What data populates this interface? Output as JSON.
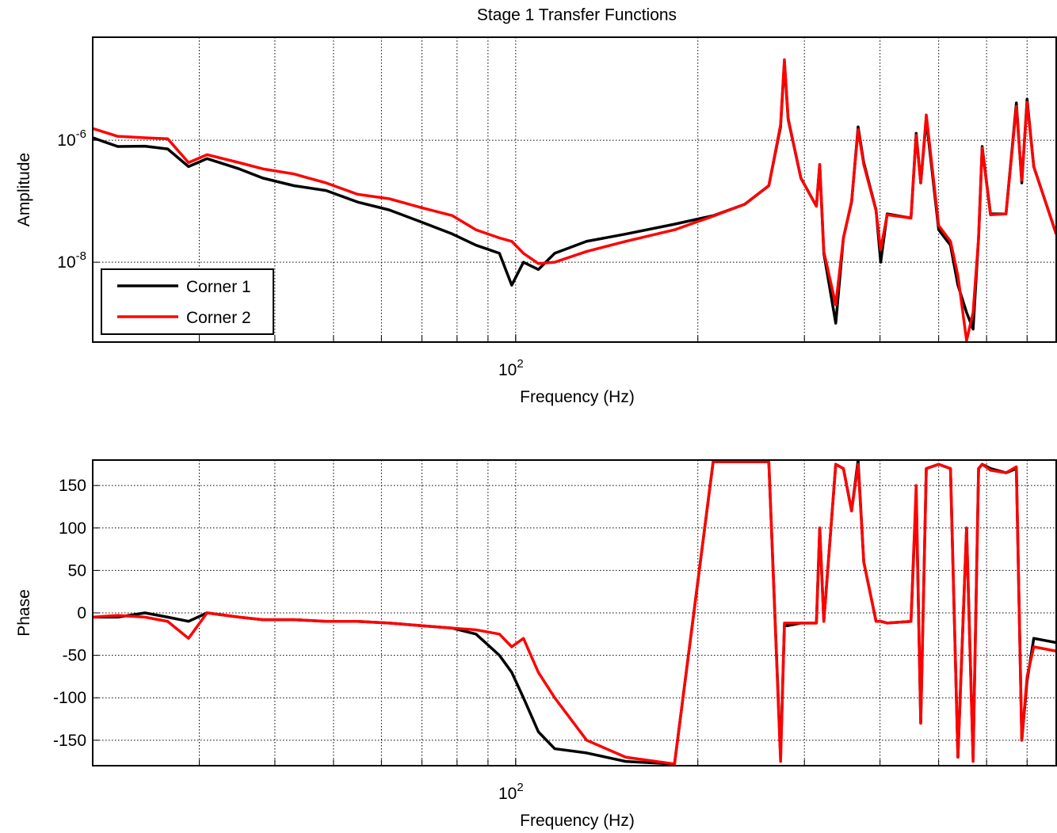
{
  "chart_data": [
    {
      "type": "line",
      "title": "Stage 1 Transfer  Functions",
      "xlabel": "Frequency (Hz)",
      "ylabel": "Amplitude",
      "xscale": "log",
      "yscale": "log",
      "grid": true,
      "legend": "lower left",
      "xlim": [
        20,
        782
      ],
      "ylim": [
        4.9e-10,
        4.9e-05
      ],
      "xticks": [
        {
          "value": 100,
          "label": "10^2"
        }
      ],
      "xgrid": [
        30,
        40,
        50,
        60,
        70,
        80,
        90,
        100,
        200,
        300,
        400,
        500,
        600,
        700
      ],
      "yticks": [
        {
          "value": 1e-06,
          "label": "10^-6"
        },
        {
          "value": 1e-08,
          "label": "10^-8"
        }
      ],
      "x": [
        20,
        22,
        24.4,
        26.6,
        28.8,
        30.9,
        34.9,
        38.2,
        43,
        48.6,
        54.8,
        61.8,
        69.7,
        78.6,
        86,
        94,
        98.5,
        103,
        109,
        116,
        131,
        152,
        183,
        212,
        239,
        262,
        274,
        278,
        282,
        296,
        314,
        318,
        323,
        338,
        348,
        359,
        368,
        376,
        394,
        401,
        411,
        450,
        459,
        467,
        477,
        500,
        523,
        538,
        556,
        570,
        582,
        590,
        609,
        646,
        672,
        686,
        700,
        718,
        782
      ],
      "series": [
        {
          "name": "Corner 1",
          "color": "#000000",
          "values": [
            1.1e-06,
            7.9e-07,
            8e-07,
            7.2e-07,
            3.7e-07,
            5e-07,
            3.4e-07,
            2.4e-07,
            1.8e-07,
            1.5e-07,
            9.7e-08,
            7.2e-08,
            4.6e-08,
            2.9e-08,
            1.9e-08,
            1.4e-08,
            4.2e-09,
            1e-08,
            7.6e-09,
            1.4e-08,
            2.2e-08,
            2.9e-08,
            4.2e-08,
            5.8e-08,
            8.9e-08,
            1.8e-07,
            1.66e-06,
            1.93e-05,
            2.2e-06,
            2.4e-07,
            8.3e-08,
            4e-07,
            1.4e-08,
            1e-09,
            2.5e-08,
            9.7e-08,
            1.66e-06,
            4.3e-07,
            7.2e-08,
            1e-08,
            6.2e-08,
            5.3e-08,
            1.3e-06,
            2e-07,
            2.2e-06,
            3.4e-08,
            1.9e-08,
            4.2e-09,
            1.5e-09,
            8e-10,
            2.5e-08,
            7.9e-07,
            6.2e-08,
            6.2e-08,
            4.1e-06,
            2e-07,
            4.7e-06,
            3.7e-07,
            2.9e-08
          ]
        },
        {
          "name": "Corner 2",
          "color": "#ff0000",
          "values": [
            1.56e-06,
            1.16e-06,
            1.1e-06,
            1.06e-06,
            4.3e-07,
            5.8e-07,
            4.3e-07,
            3.4e-07,
            2.8e-07,
            2e-07,
            1.3e-07,
            1.1e-07,
            7.9e-08,
            5.8e-08,
            3.4e-08,
            2.5e-08,
            2.2e-08,
            1.4e-08,
            9.5e-09,
            1e-08,
            1.5e-08,
            2.2e-08,
            3.4e-08,
            5.7e-08,
            8.9e-08,
            1.8e-07,
            1.8e-06,
            2.1e-05,
            2.3e-06,
            2.4e-07,
            8.3e-08,
            4e-07,
            1.5e-08,
            2e-09,
            2.5e-08,
            1e-07,
            1.5e-06,
            4e-07,
            7e-08,
            1.6e-08,
            6e-08,
            5.3e-08,
            1.2e-06,
            2e-07,
            2.6e-06,
            4e-08,
            2.2e-08,
            6e-09,
            5.2e-10,
            1.5e-09,
            2.5e-08,
            7.5e-07,
            6e-08,
            6.2e-08,
            3.6e-06,
            2.2e-07,
            4.2e-06,
            3.7e-07,
            2.9e-08
          ]
        }
      ]
    },
    {
      "type": "line",
      "xlabel": "Frequency (Hz)",
      "ylabel": "Phase",
      "xscale": "log",
      "grid": true,
      "xlim": [
        20,
        782
      ],
      "ylim": [
        -180,
        180
      ],
      "xticks": [
        {
          "value": 100,
          "label": "10^2"
        }
      ],
      "xgrid": [
        30,
        40,
        50,
        60,
        70,
        80,
        90,
        100,
        200,
        300,
        400,
        500,
        600,
        700
      ],
      "yticks": [
        -150,
        -100,
        -50,
        0,
        50,
        100,
        150
      ],
      "x": [
        20,
        22,
        24.4,
        26.6,
        28.8,
        30.9,
        34.9,
        38.2,
        43,
        48.6,
        54.8,
        61.8,
        69.7,
        78.6,
        86,
        94,
        98.5,
        103,
        109,
        116,
        131,
        152,
        183,
        212,
        239,
        262,
        274,
        278,
        282,
        296,
        314,
        318,
        323,
        338,
        348,
        359,
        368,
        376,
        394,
        401,
        411,
        450,
        459,
        467,
        477,
        500,
        523,
        538,
        556,
        570,
        582,
        590,
        609,
        646,
        672,
        686,
        700,
        718,
        782
      ],
      "series": [
        {
          "color": "#000000",
          "values": [
            -5,
            -5,
            0,
            -5,
            -10,
            0,
            -5,
            -8,
            -8,
            -10,
            -10,
            -12,
            -15,
            -18,
            -25,
            -50,
            -70,
            -100,
            -140,
            -160,
            -165,
            -175,
            -178,
            178,
            178,
            178,
            -170,
            -15,
            -15,
            -12,
            -12,
            100,
            -10,
            175,
            170,
            120,
            180,
            60,
            -10,
            -10,
            -12,
            -10,
            140,
            -130,
            170,
            175,
            170,
            -170,
            100,
            -170,
            170,
            175,
            170,
            165,
            170,
            -150,
            -80,
            -30,
            -35
          ]
        },
        {
          "color": "#ff0000",
          "values": [
            -5,
            -3,
            -5,
            -10,
            -30,
            0,
            -5,
            -8,
            -8,
            -10,
            -10,
            -12,
            -15,
            -18,
            -20,
            -25,
            -40,
            -30,
            -70,
            -100,
            -150,
            -170,
            -178,
            178,
            178,
            178,
            -175,
            -12,
            -12,
            -12,
            -12,
            100,
            -10,
            175,
            170,
            120,
            175,
            60,
            -10,
            -10,
            -12,
            -10,
            150,
            -130,
            170,
            175,
            170,
            -170,
            100,
            -175,
            170,
            175,
            168,
            165,
            172,
            -150,
            -75,
            -40,
            -45
          ]
        }
      ]
    }
  ]
}
